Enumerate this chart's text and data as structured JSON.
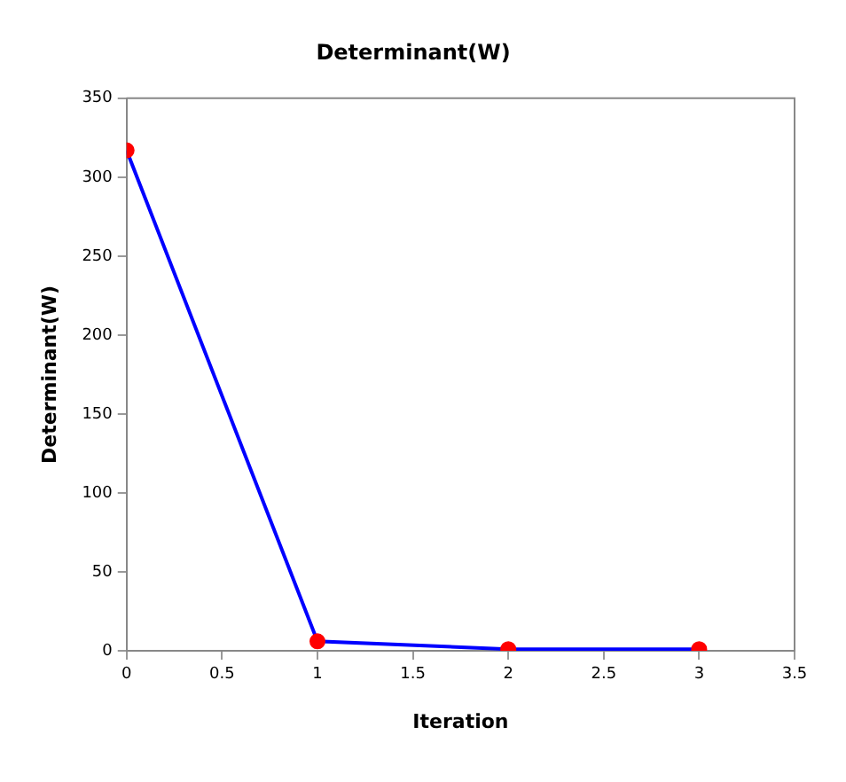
{
  "chart_data": {
    "type": "line",
    "title": "Determinant(W)",
    "xlabel": "Iteration",
    "ylabel": "Determinant(W)",
    "x": [
      0,
      1,
      2,
      3
    ],
    "series": [
      {
        "color": "#0000ff",
        "marker": "none",
        "values": [
          317,
          6,
          1,
          1
        ]
      },
      {
        "type": "scatter",
        "color": "#ff0000",
        "marker": "circle",
        "values": [
          317,
          6,
          1,
          1
        ]
      }
    ],
    "xlim": [
      0,
      3.5
    ],
    "xticks": [
      0,
      0.5,
      1,
      1.5,
      2,
      2.5,
      3,
      3.5
    ],
    "ylim": [
      0,
      350
    ],
    "yticks": [
      0,
      50,
      100,
      150,
      200,
      250,
      300,
      350
    ],
    "grid": false,
    "legend": false,
    "line_style": "solid"
  }
}
